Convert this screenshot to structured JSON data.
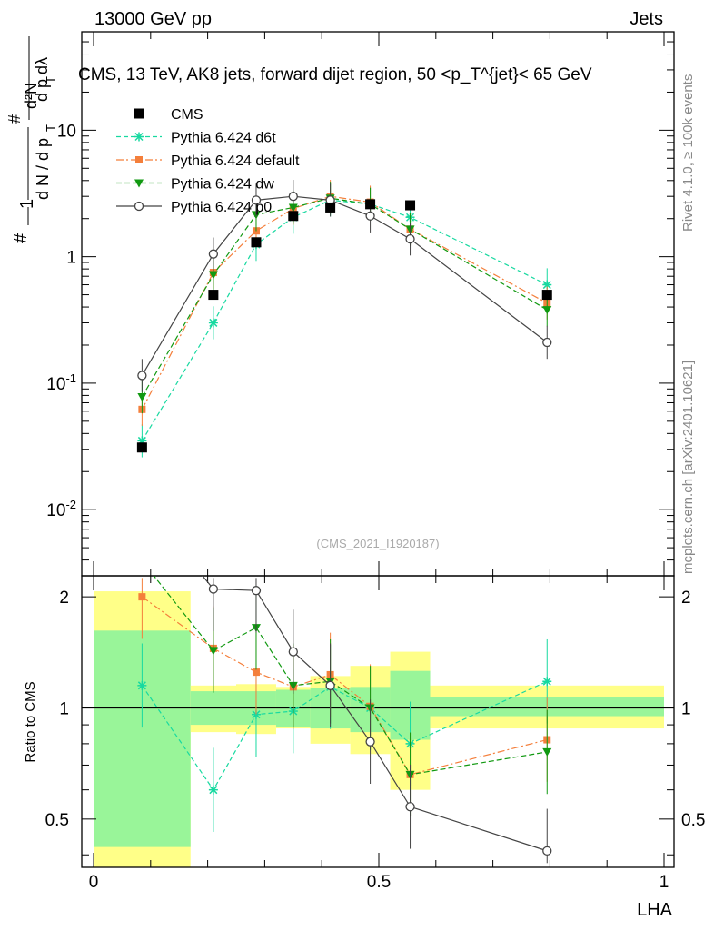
{
  "header": {
    "left": "13000 GeV pp",
    "right": "Jets"
  },
  "side_labels": {
    "rivet": "Rivet 4.1.0, ≥ 100k events",
    "mcplots": "mcplots.cern.ch [arXiv:2401.10621]"
  },
  "chart_data": {
    "type": "line",
    "title": "CMS, 13 TeV, AK8 jets, forward dijet region, 50 <p_T^{jet}< 65 GeV",
    "watermark": "(CMS_2021_I1920187)",
    "xlabel": "LHA",
    "ylabel": "1/(dN/dp_T) · d²N/(dp_T dλ)",
    "ratio_ylabel": "Ratio to CMS",
    "xlim": [
      0,
      1
    ],
    "ylim": [
      0.003,
      60
    ],
    "yscale": "log",
    "ratio_ylim": [
      0.37,
      2.28
    ],
    "ratio_yscale": "log",
    "x_ticks": [
      "0",
      "0.5",
      "1"
    ],
    "y_ticks": [
      "10^-2",
      "10^-1",
      "1",
      "10"
    ],
    "ratio_ticks": [
      "0.5",
      "1",
      "2"
    ],
    "bins": [
      [
        0,
        0.17
      ],
      [
        0.17,
        0.25
      ],
      [
        0.25,
        0.32
      ],
      [
        0.32,
        0.38
      ],
      [
        0.38,
        0.45
      ],
      [
        0.45,
        0.52
      ],
      [
        0.52,
        0.59
      ],
      [
        0.59,
        1.0
      ]
    ],
    "x": [
      0.085,
      0.21,
      0.285,
      0.35,
      0.415,
      0.485,
      0.555,
      0.795
    ],
    "data": {
      "name": "CMS",
      "values": [
        0.031,
        0.5,
        1.3,
        2.1,
        2.45,
        2.6,
        2.55,
        0.5
      ],
      "band_stat": [
        [
          0.42,
          1.62
        ],
        [
          0.9,
          1.11
        ],
        [
          0.9,
          1.11
        ],
        [
          0.89,
          1.12
        ],
        [
          0.88,
          1.13
        ],
        [
          0.86,
          1.14
        ],
        [
          0.82,
          1.26
        ],
        [
          0.95,
          1.07
        ]
      ],
      "band_total": [
        [
          0.37,
          2.07
        ],
        [
          0.86,
          1.15
        ],
        [
          0.85,
          1.16
        ],
        [
          0.88,
          1.14
        ],
        [
          0.8,
          1.22
        ],
        [
          0.75,
          1.3
        ],
        [
          0.6,
          1.42
        ],
        [
          0.88,
          1.15
        ]
      ]
    },
    "series": [
      {
        "name": "Pythia 6.424 d6t",
        "color": "#17d9a0",
        "dash": "5,3",
        "marker": "star",
        "values": [
          0.035,
          0.3,
          1.25,
          2.05,
          2.8,
          2.6,
          2.05,
          0.6
        ],
        "ratio": [
          1.15,
          0.6,
          0.96,
          0.98,
          1.14,
          1.0,
          0.8,
          1.18
        ]
      },
      {
        "name": "Pythia 6.424 default",
        "color": "#f47f3b",
        "dash": "8,3,2,3",
        "marker": "square",
        "values": [
          0.062,
          0.75,
          1.6,
          2.4,
          3.0,
          2.7,
          1.65,
          0.43
        ],
        "ratio": [
          2.0,
          1.45,
          1.25,
          1.14,
          1.23,
          1.01,
          0.66,
          0.82
        ]
      },
      {
        "name": "Pythia 6.424 dw",
        "color": "#119911",
        "dash": "6,3",
        "marker": "triangle",
        "values": [
          0.078,
          0.72,
          2.15,
          2.45,
          2.9,
          2.6,
          1.65,
          0.38
        ],
        "ratio": [
          2.5,
          1.43,
          1.65,
          1.15,
          1.18,
          1.0,
          0.66,
          0.76
        ]
      },
      {
        "name": "Pythia 6.424 p0",
        "color": "#444444",
        "dash": "",
        "marker": "circle",
        "values": [
          0.115,
          1.05,
          2.8,
          3.0,
          2.8,
          2.1,
          1.38,
          0.21
        ],
        "ratio": [
          3.6,
          2.1,
          2.08,
          1.42,
          1.15,
          0.81,
          0.54,
          0.41
        ]
      }
    ]
  }
}
